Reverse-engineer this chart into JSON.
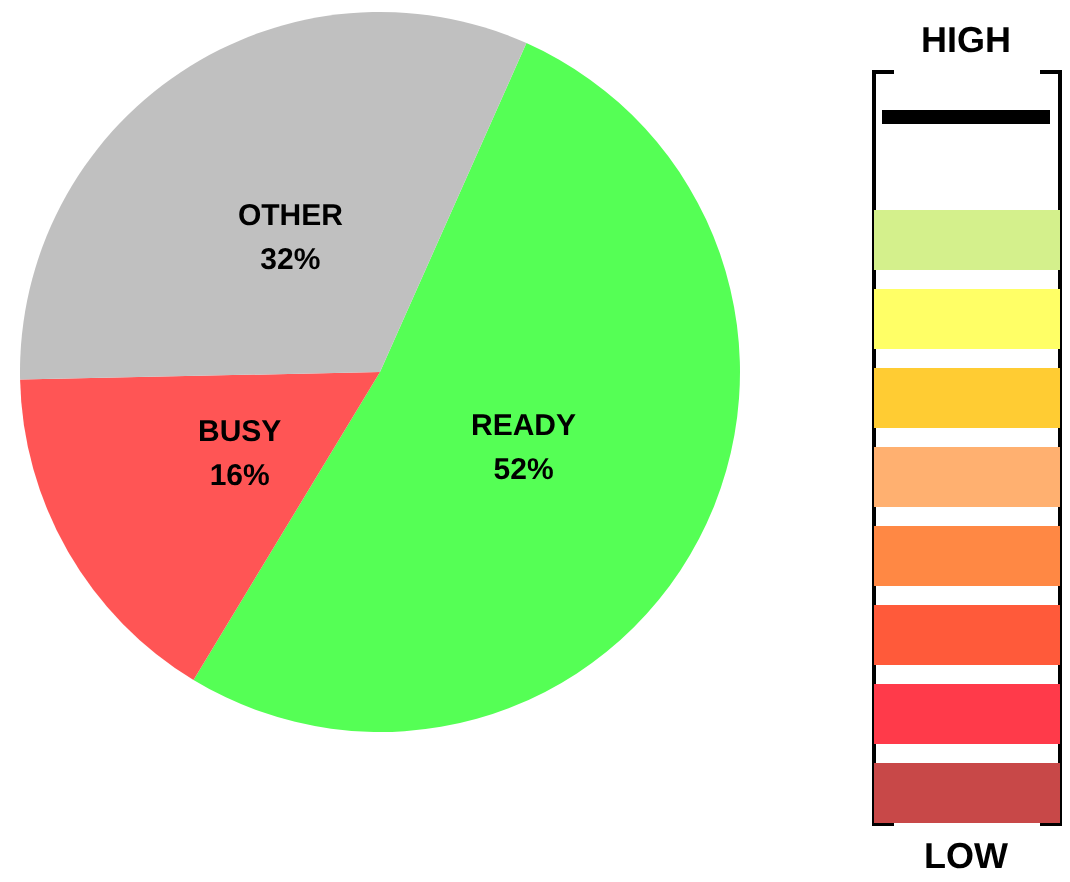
{
  "chart_data": {
    "type": "pie",
    "categories": [
      "READY",
      "BUSY",
      "OTHER"
    ],
    "values": [
      52,
      16,
      32
    ],
    "colors": [
      "#55ff55",
      "#ff5555",
      "#c0c0c0"
    ],
    "value_labels": [
      "52%",
      "16%",
      "32%"
    ],
    "annotations": [
      "HIGH",
      "LOW"
    ]
  }
}
